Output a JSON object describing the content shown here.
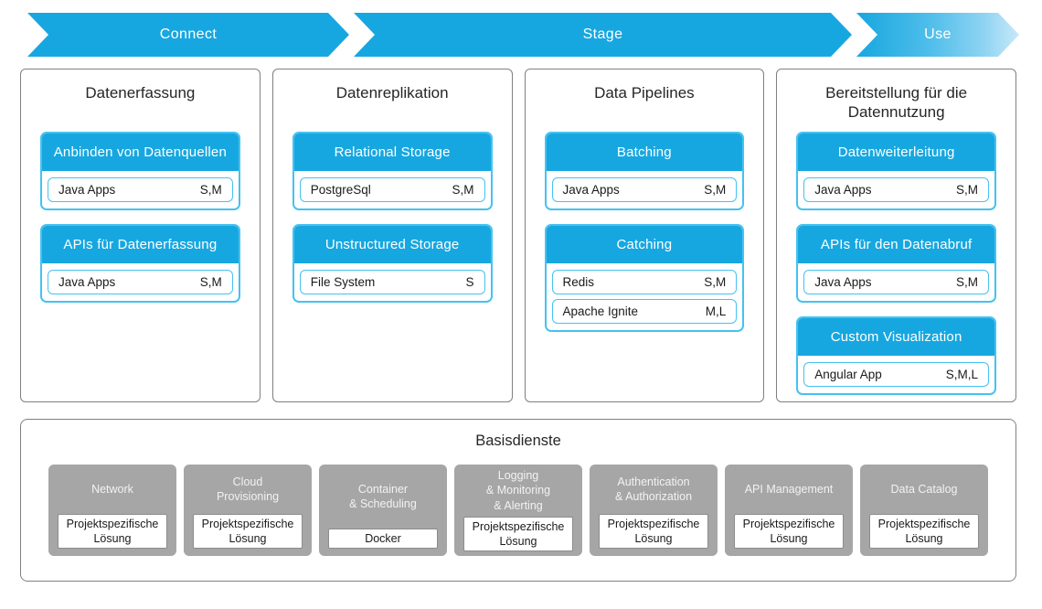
{
  "colors": {
    "accent_blue": "#17a7e0",
    "light_blue_border": "#45c2f0",
    "use_arrow_gradient_end": "#c9e9f8",
    "gray_box": "#a6a6a6",
    "container_border": "#808080"
  },
  "arrows": [
    {
      "label": "Connect"
    },
    {
      "label": "Stage"
    },
    {
      "label": "Use"
    }
  ],
  "columns": [
    {
      "title": "Datenerfassung",
      "cards": [
        {
          "header": "Anbinden von Datenquellen",
          "items": [
            {
              "name": "Java Apps",
              "size": "S,M"
            }
          ]
        },
        {
          "header": "APIs für Datenerfassung",
          "items": [
            {
              "name": "Java Apps",
              "size": "S,M"
            }
          ]
        }
      ]
    },
    {
      "title": "Datenreplikation",
      "cards": [
        {
          "header": "Relational Storage",
          "items": [
            {
              "name": "PostgreSql",
              "size": "S,M"
            }
          ]
        },
        {
          "header": "Unstructured Storage",
          "items": [
            {
              "name": "File System",
              "size": "S"
            }
          ]
        }
      ]
    },
    {
      "title": "Data Pipelines",
      "cards": [
        {
          "header": "Batching",
          "items": [
            {
              "name": "Java Apps",
              "size": "S,M"
            }
          ]
        },
        {
          "header": "Catching",
          "items": [
            {
              "name": "Redis",
              "size": "S,M"
            },
            {
              "name": "Apache Ignite",
              "size": "M,L"
            }
          ]
        }
      ]
    },
    {
      "title": "Bereitstellung für die\nDatennutzung",
      "cards": [
        {
          "header": "Datenweiterleitung",
          "items": [
            {
              "name": "Java Apps",
              "size": "S,M"
            }
          ]
        },
        {
          "header": "APIs für den Datenabruf",
          "items": [
            {
              "name": "Java Apps",
              "size": "S,M"
            }
          ]
        },
        {
          "header": "Custom Visualization",
          "items": [
            {
              "name": "Angular App",
              "size": "S,M,L"
            }
          ]
        }
      ]
    }
  ],
  "base": {
    "title": "Basisdienste",
    "boxes": [
      {
        "label": "Network",
        "solution": "Projektspezifische\nLösung"
      },
      {
        "label": "Cloud\nProvisioning",
        "solution": "Projektspezifische\nLösung"
      },
      {
        "label": "Container\n& Scheduling",
        "solution": "Docker"
      },
      {
        "label": "Logging\n& Monitoring\n& Alerting",
        "solution": "Projektspezifische\nLösung"
      },
      {
        "label": "Authentication\n& Authorization",
        "solution": "Projektspezifische\nLösung"
      },
      {
        "label": "API Management",
        "solution": "Projektspezifische\nLösung"
      },
      {
        "label": "Data Catalog",
        "solution": "Projektspezifische\nLösung"
      }
    ]
  }
}
